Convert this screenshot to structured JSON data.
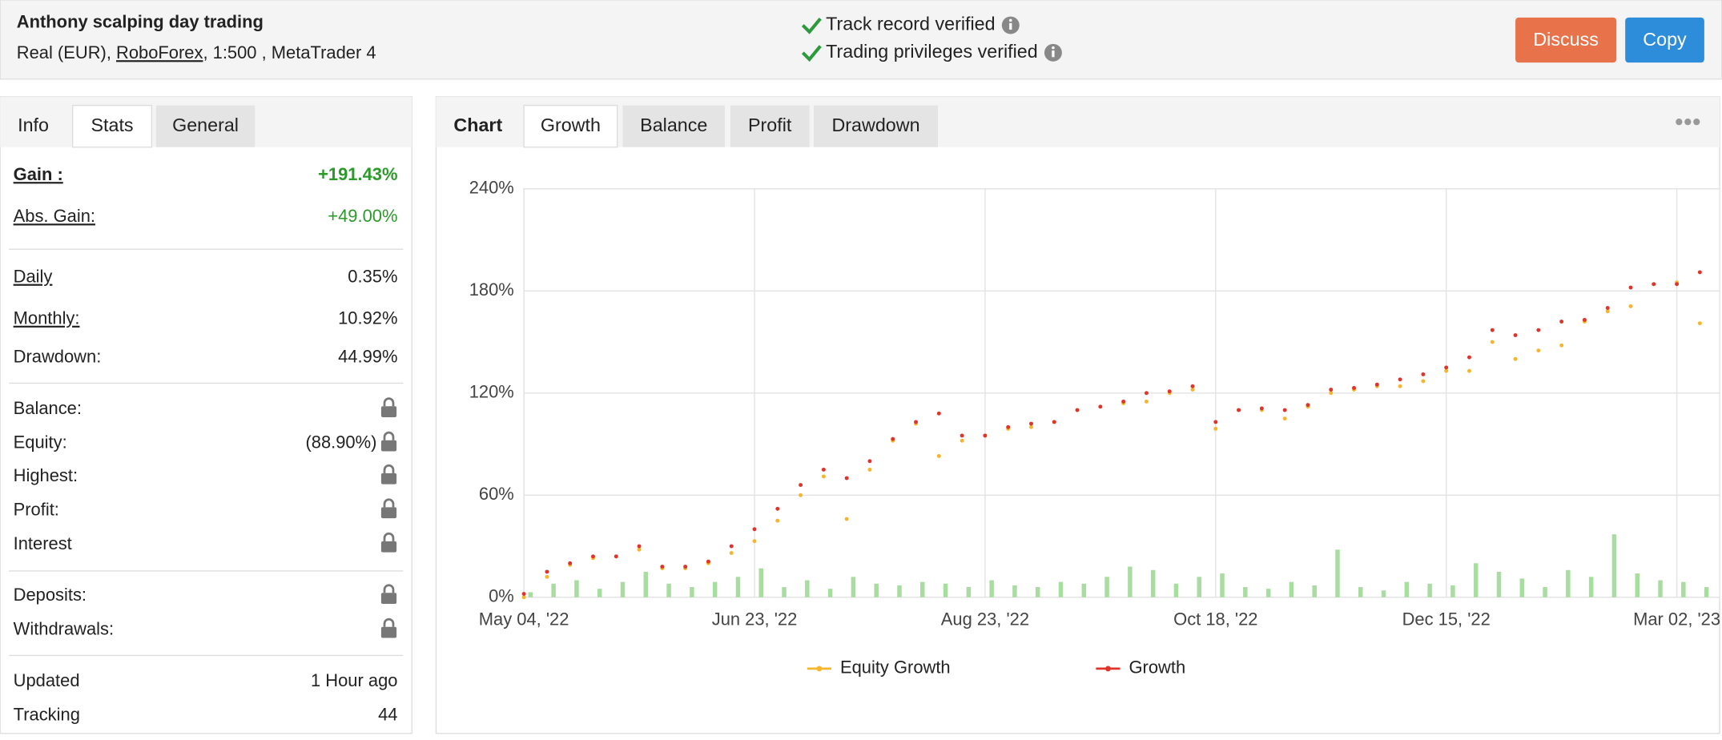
{
  "header": {
    "title": "Anthony scalping day trading",
    "account_prefix": "Real (EUR),",
    "broker": "RoboForex",
    "account_suffix": ", 1:500 , MetaTrader 4",
    "verifications": [
      "Track record verified",
      "Trading privileges verified"
    ],
    "buttons": [
      "Discuss",
      "Copy"
    ]
  },
  "left_tabs": [
    "Info",
    "Stats",
    "General"
  ],
  "stats": [
    [
      {
        "label": "Gain :",
        "value": "+191.43%"
      },
      {
        "label": "Abs. Gain:",
        "value": "+49.00%"
      }
    ],
    [
      {
        "label": "Daily",
        "value": "0.35%"
      },
      {
        "label": "Monthly:",
        "value": "10.92%"
      },
      {
        "label": "Drawdown:",
        "value": "44.99%"
      }
    ],
    [
      {
        "label": "Balance:",
        "locked": true
      },
      {
        "label": "Equity:",
        "value": "(88.90%)",
        "locked": true
      },
      {
        "label": "Highest:",
        "locked": true
      },
      {
        "label": "Profit:",
        "locked": true
      },
      {
        "label": "Interest",
        "locked": true
      }
    ],
    [
      {
        "label": "Deposits:",
        "locked": true
      },
      {
        "label": "Withdrawals:",
        "locked": true
      }
    ],
    [
      {
        "label": "Updated",
        "value": "1 Hour ago"
      },
      {
        "label": "Tracking",
        "value": 44
      }
    ]
  ],
  "chart_tabs": [
    "Chart",
    "Growth",
    "Balance",
    "Profit",
    "Drawdown"
  ],
  "chart_data": {
    "type": "line",
    "categories": [
      "May 04, '22",
      null,
      null,
      null,
      null,
      null,
      null,
      null,
      null,
      null,
      "Jun 23, '22",
      null,
      null,
      null,
      null,
      null,
      null,
      null,
      null,
      null,
      "Aug 23, '22",
      null,
      null,
      null,
      null,
      null,
      null,
      null,
      null,
      null,
      "Oct 18, '22",
      null,
      null,
      null,
      null,
      null,
      null,
      null,
      null,
      null,
      "Dec 15, '22",
      null,
      null,
      null,
      null,
      null,
      null,
      null,
      null,
      null,
      "Mar 02, '23",
      null
    ],
    "series": [
      {
        "name": "Equity Growth",
        "color": "#f7b52c",
        "values": [
          0,
          12,
          19,
          23,
          24,
          28,
          17,
          17,
          20,
          26,
          33,
          45,
          60,
          71,
          46,
          75,
          92,
          102,
          83,
          92,
          95,
          99,
          100,
          103,
          110,
          112,
          114,
          115,
          120,
          122,
          99,
          110,
          110,
          105,
          112,
          120,
          122,
          124,
          124,
          127,
          133,
          133,
          150,
          140,
          145,
          148,
          162,
          168,
          171,
          184,
          185,
          161
        ]
      },
      {
        "name": "Growth",
        "color": "#e0332b",
        "values": [
          2,
          15,
          20,
          24,
          24,
          30,
          18,
          18,
          21,
          30,
          40,
          52,
          66,
          75,
          70,
          80,
          93,
          103,
          108,
          95,
          95,
          100,
          102,
          103,
          110,
          112,
          115,
          120,
          121,
          124,
          103,
          110,
          111,
          110,
          113,
          122,
          123,
          125,
          128,
          131,
          135,
          141,
          157,
          154,
          157,
          162,
          163,
          170,
          182,
          184,
          184,
          191
        ]
      }
    ],
    "bars": {
      "color": "#a9dca0",
      "values": [
        3,
        8,
        10,
        5,
        9,
        15,
        8,
        6,
        9,
        12,
        17,
        6,
        10,
        5,
        12,
        8,
        7,
        9,
        8,
        6,
        10,
        7,
        6,
        9,
        8,
        12,
        18,
        16,
        8,
        12,
        14,
        6,
        5,
        9,
        7,
        28,
        6,
        4,
        9,
        8,
        7,
        20,
        15,
        11,
        6,
        16,
        12,
        37,
        14,
        10,
        9,
        6
      ]
    },
    "ylim": [
      0,
      240
    ],
    "yticks": [
      {
        "value": 0,
        "label": "0%"
      },
      {
        "value": 60,
        "label": "60%"
      },
      {
        "value": 120,
        "label": "120%"
      },
      {
        "value": 180,
        "label": "180%"
      },
      {
        "value": 240,
        "label": "240%"
      }
    ],
    "grid": true
  }
}
